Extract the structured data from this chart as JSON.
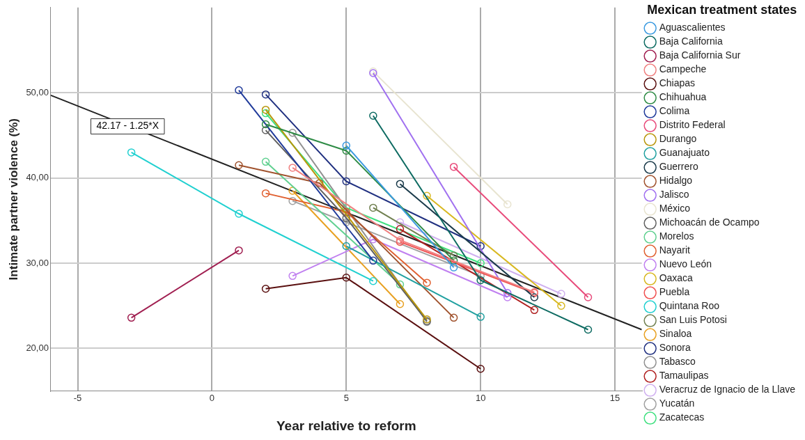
{
  "chart_data": {
    "type": "line",
    "xlabel": "Year relative to reform",
    "ylabel": "Intimate partner violence (%)",
    "legend_title": "Mexican treatment states",
    "xlim": [
      -6,
      16
    ],
    "xticks": [
      -5,
      0,
      5,
      10,
      15
    ],
    "ylim": [
      15,
      60
    ],
    "yticks": [
      {
        "value": 20,
        "label": "20,00"
      },
      {
        "value": 30,
        "label": "30,00"
      },
      {
        "value": 40,
        "label": "40,00"
      },
      {
        "value": 50,
        "label": "50,00"
      }
    ],
    "grid": true,
    "legend": "right",
    "marker": "circle",
    "annotations": [
      "42.17 - 1.25*X"
    ],
    "series": [
      {
        "name": "Aguascalientes",
        "color": "#3a9ae0",
        "x": [
          5,
          9
        ],
        "values": [
          43.8,
          29.5
        ]
      },
      {
        "name": "Baja California",
        "color": "#0e6b62",
        "x": [
          6,
          10,
          14
        ],
        "values": [
          47.3,
          28,
          22.2
        ]
      },
      {
        "name": "Baja California Sur",
        "color": "#a01e50",
        "x": [
          -3,
          1
        ],
        "values": [
          23.6,
          31.5
        ]
      },
      {
        "name": "Campeche",
        "color": "#f08080",
        "x": [
          3,
          7,
          12
        ],
        "values": [
          41.2,
          32.7,
          26.6
        ]
      },
      {
        "name": "Chiapas",
        "color": "#5a1010",
        "x": [
          2,
          5,
          10
        ],
        "values": [
          27,
          28.3,
          17.6
        ]
      },
      {
        "name": "Chihuahua",
        "color": "#2e8b45",
        "x": [
          2,
          5,
          9
        ],
        "values": [
          46.3,
          43.2,
          30.3
        ]
      },
      {
        "name": "Colima",
        "color": "#1f3a9a",
        "x": [
          1,
          6
        ],
        "values": [
          50.3,
          30.3
        ]
      },
      {
        "name": "Distrito Federal",
        "color": "#e84a7a",
        "x": [
          9,
          14
        ],
        "values": [
          41.3,
          26
        ]
      },
      {
        "name": "Durango",
        "color": "#b8960b",
        "x": [
          2,
          8
        ],
        "values": [
          48,
          23.4
        ]
      },
      {
        "name": "Guanajuato",
        "color": "#20a0a0",
        "x": [
          5,
          10
        ],
        "values": [
          32,
          23.7
        ]
      },
      {
        "name": "Guerrero",
        "color": "#1a3a4a",
        "x": [
          7,
          12
        ],
        "values": [
          39.3,
          26
        ]
      },
      {
        "name": "Hidalgo",
        "color": "#a0522d",
        "x": [
          1,
          4,
          9
        ],
        "values": [
          41.5,
          39.4,
          23.6
        ]
      },
      {
        "name": "Jalisco",
        "color": "#a070f0",
        "x": [
          6,
          11
        ],
        "values": [
          52.3,
          26.5
        ]
      },
      {
        "name": "México",
        "color": "#e8e4d0",
        "x": [
          6,
          11
        ],
        "values": [
          52.5,
          36.9
        ]
      },
      {
        "name": "Michoacán de Ocampo",
        "color": "#606060",
        "x": [
          2,
          5,
          8
        ],
        "values": [
          45.6,
          35.3,
          23.2
        ]
      },
      {
        "name": "Morelos",
        "color": "#60d090",
        "x": [
          2,
          7
        ],
        "values": [
          41.9,
          27.5
        ]
      },
      {
        "name": "Nayarit",
        "color": "#e06030",
        "x": [
          2,
          5,
          8
        ],
        "values": [
          38.2,
          36,
          27.7
        ]
      },
      {
        "name": "Nuevo León",
        "color": "#c080f0",
        "x": [
          3,
          6,
          11
        ],
        "values": [
          28.5,
          32.8,
          26
        ]
      },
      {
        "name": "Oaxaca",
        "color": "#d8b820",
        "x": [
          8,
          13
        ],
        "values": [
          37.9,
          25
        ]
      },
      {
        "name": "Puebla",
        "color": "#f05050",
        "x": [
          7,
          12
        ],
        "values": [
          32.5,
          26.5
        ]
      },
      {
        "name": "Quintana Roo",
        "color": "#20d0d0",
        "x": [
          -3,
          1,
          6
        ],
        "values": [
          43,
          35.8,
          27.9
        ]
      },
      {
        "name": "San Luis Potosi",
        "color": "#708050",
        "x": [
          6,
          9
        ],
        "values": [
          36.5,
          30.9
        ]
      },
      {
        "name": "Sinaloa",
        "color": "#e8a020",
        "x": [
          3,
          7
        ],
        "values": [
          38.5,
          25.2
        ]
      },
      {
        "name": "Sonora",
        "color": "#203080",
        "x": [
          2,
          5,
          10
        ],
        "values": [
          49.8,
          39.6,
          32
        ]
      },
      {
        "name": "Tabasco",
        "color": "#909090",
        "x": [
          3,
          8
        ],
        "values": [
          45.3,
          23.1
        ]
      },
      {
        "name": "Tamaulipas",
        "color": "#b02020",
        "x": [
          7,
          12
        ],
        "values": [
          34,
          24.5
        ]
      },
      {
        "name": "Veracruz de Ignacio de la Llave",
        "color": "#d0b0f0",
        "x": [
          7,
          13
        ],
        "values": [
          34.8,
          26.4
        ]
      },
      {
        "name": "Yucatán",
        "color": "#a0a0a0",
        "x": [
          3,
          5,
          10
        ],
        "values": [
          37.3,
          34.8,
          28.5
        ]
      },
      {
        "name": "Zacatecas",
        "color": "#40e080",
        "x": [
          2,
          5,
          10
        ],
        "values": [
          47.6,
          36.5,
          30
        ]
      },
      {
        "color": "#222222",
        "type": "line",
        "marker": "none",
        "x": [
          -6,
          16
        ],
        "values": [
          49.7,
          22.2
        ]
      }
    ]
  }
}
